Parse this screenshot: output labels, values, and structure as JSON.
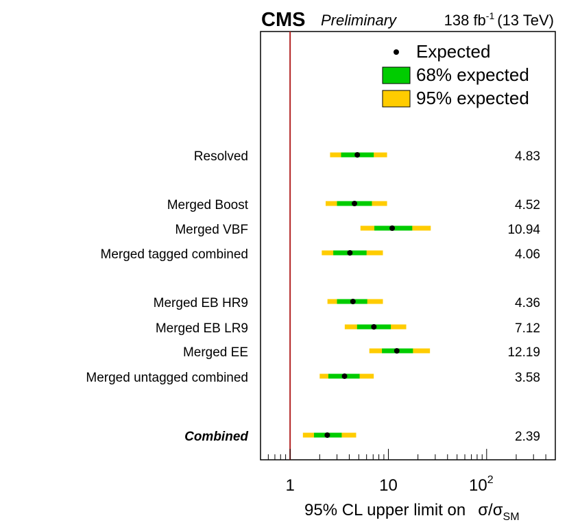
{
  "header": {
    "experiment": "CMS",
    "status": "Preliminary",
    "lumi_prefix": "138 fb",
    "lumi_exp": "-1",
    "lumi_suffix": "(13 TeV)"
  },
  "legend": {
    "expected": "Expected",
    "band68": "68% expected",
    "band95": "95% expected",
    "placement": "top-right"
  },
  "colors": {
    "expected_marker": "#000000",
    "band68": "#00cc00",
    "band95": "#ffcc00",
    "sm_line": "#b22222"
  },
  "axis": {
    "xlabel_prefix": "95% CL upper limit on",
    "xlabel_sigma": "σ/σ",
    "xlabel_sub": "SM"
  },
  "chart_data": {
    "type": "scatter",
    "x_scale": "log",
    "xlim": [
      0.5,
      500
    ],
    "reference_line": 1,
    "ticks": [
      {
        "value": 1,
        "base": "1",
        "exp": ""
      },
      {
        "value": 10,
        "base": "10",
        "exp": ""
      },
      {
        "value": 100,
        "base": "10",
        "exp": "2"
      }
    ],
    "categories": [
      {
        "label": "Resolved",
        "italic_bold": false,
        "expected": 4.83,
        "band68": [
          3.3,
          7.1
        ],
        "band95": [
          2.55,
          9.7
        ],
        "value_text": "4.83"
      },
      {
        "label": "Merged Boost",
        "italic_bold": false,
        "expected": 4.52,
        "band68": [
          3.0,
          6.8
        ],
        "band95": [
          2.3,
          9.7
        ],
        "value_text": "4.52"
      },
      {
        "label": "Merged VBF",
        "italic_bold": false,
        "expected": 10.94,
        "band68": [
          7.2,
          17.5
        ],
        "band95": [
          5.2,
          27.0
        ],
        "value_text": "10.94"
      },
      {
        "label": "Merged tagged combined",
        "italic_bold": false,
        "expected": 4.06,
        "band68": [
          2.75,
          6.0
        ],
        "band95": [
          2.1,
          8.8
        ],
        "value_text": "4.06"
      },
      {
        "label": "Merged EB HR9",
        "italic_bold": false,
        "expected": 4.36,
        "band68": [
          3.0,
          6.1
        ],
        "band95": [
          2.4,
          8.8
        ],
        "value_text": "4.36"
      },
      {
        "label": "Merged EB LR9",
        "italic_bold": false,
        "expected": 7.12,
        "band68": [
          4.8,
          10.6
        ],
        "band95": [
          3.6,
          15.2
        ],
        "value_text": "7.12"
      },
      {
        "label": "Merged EE",
        "italic_bold": false,
        "expected": 12.19,
        "band68": [
          8.6,
          17.8
        ],
        "band95": [
          6.4,
          26.5
        ],
        "value_text": "12.19"
      },
      {
        "label": "Merged untagged combined",
        "italic_bold": false,
        "expected": 3.58,
        "band68": [
          2.45,
          5.1
        ],
        "band95": [
          2.0,
          7.1
        ],
        "value_text": "3.58"
      },
      {
        "label": "Combined",
        "italic_bold": true,
        "expected": 2.39,
        "band68": [
          1.75,
          3.35
        ],
        "band95": [
          1.35,
          4.7
        ],
        "value_text": "2.39"
      }
    ]
  }
}
